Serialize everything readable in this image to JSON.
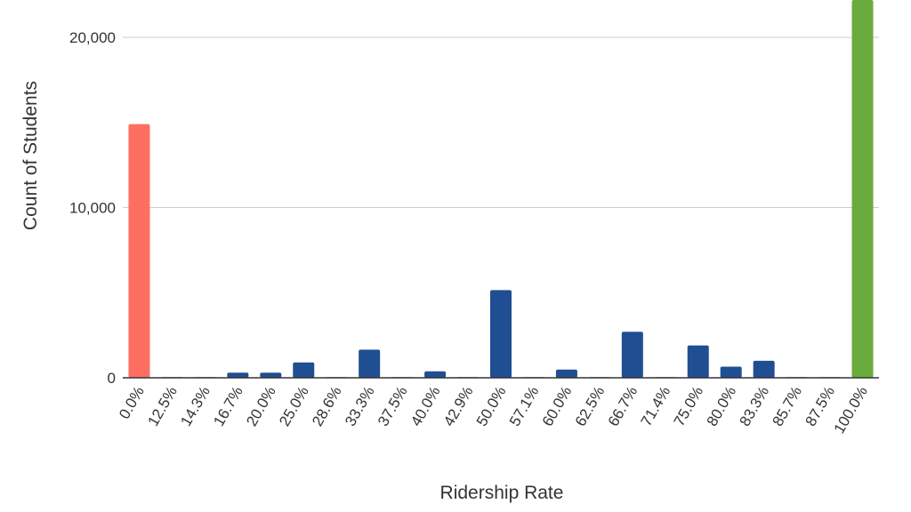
{
  "chart_data": {
    "type": "bar",
    "title": "",
    "xlabel": "Ridership Rate",
    "ylabel": "Count of Students",
    "ylim": [
      0,
      20500
    ],
    "yticks": [
      0,
      10000,
      20000
    ],
    "ytick_labels": [
      "0",
      "10,000",
      "20,000"
    ],
    "grid": true,
    "categories": [
      "0.0%",
      "12.5%",
      "14.3%",
      "16.7%",
      "20.0%",
      "25.0%",
      "28.6%",
      "33.3%",
      "37.5%",
      "40.0%",
      "42.9%",
      "50.0%",
      "57.1%",
      "60.0%",
      "62.5%",
      "66.7%",
      "71.4%",
      "75.0%",
      "80.0%",
      "83.3%",
      "85.7%",
      "87.5%",
      "100.0%"
    ],
    "values": [
      14900,
      40,
      40,
      300,
      300,
      900,
      40,
      1650,
      40,
      380,
      40,
      5150,
      40,
      480,
      40,
      2700,
      40,
      1900,
      650,
      1000,
      40,
      40,
      23000
    ],
    "colors": {
      "zero": "#ff6f61",
      "partial": "#1f4e93",
      "full": "#6aab3e",
      "grid": "#cccccc",
      "baseline": "#333333"
    }
  }
}
